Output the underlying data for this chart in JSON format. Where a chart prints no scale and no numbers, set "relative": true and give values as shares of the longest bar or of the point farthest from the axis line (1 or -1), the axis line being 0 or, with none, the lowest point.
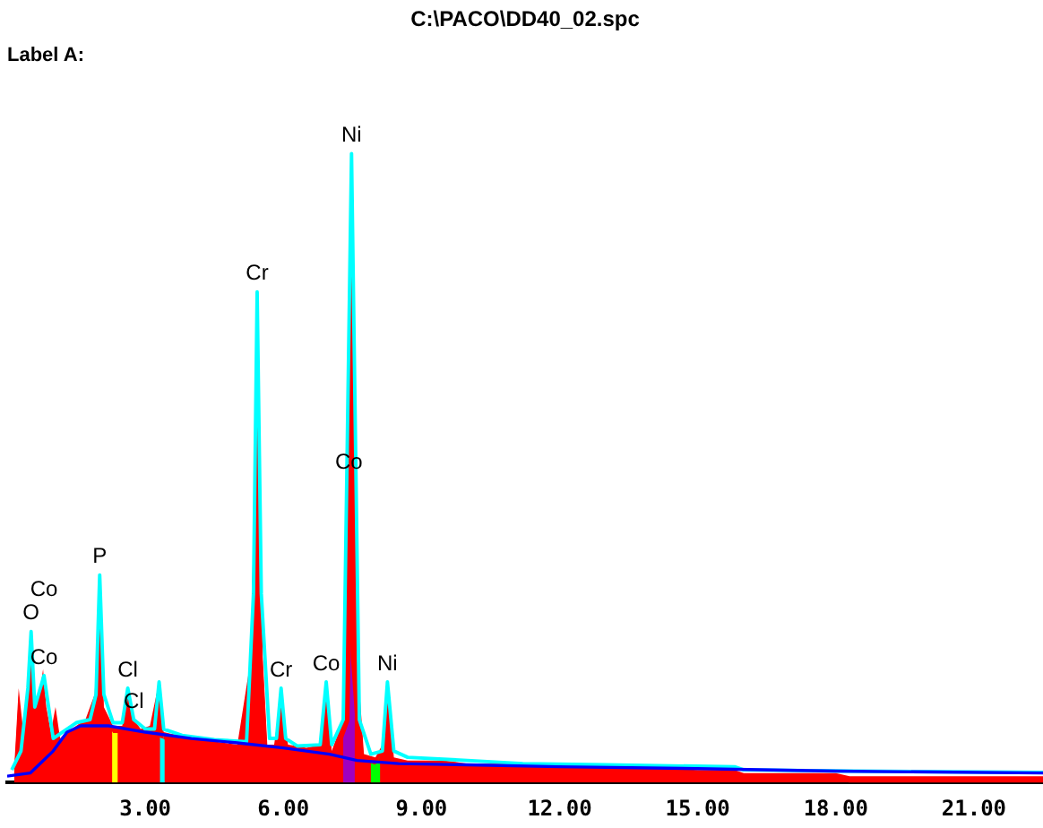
{
  "chart_data": {
    "type": "area",
    "title": "C:\\PACO\\DD40_02.spc",
    "subtitle": "Label A:",
    "relative": true,
    "xlim": [
      0,
      22.5
    ],
    "xticks": [
      {
        "value": 3,
        "label": "3.00"
      },
      {
        "value": 6,
        "label": "6.00"
      },
      {
        "value": 9,
        "label": "9.00"
      },
      {
        "value": 12,
        "label": "12.00"
      },
      {
        "value": 15,
        "label": "15.00"
      },
      {
        "value": 18,
        "label": "18.00"
      },
      {
        "value": 21,
        "label": "21.00"
      }
    ],
    "tick_labels": "x",
    "grid": false,
    "legend": false,
    "marker": "none",
    "series": [
      {
        "color": "#ff0000",
        "x": [
          0.15,
          0.25,
          0.35,
          0.45,
          0.52,
          0.6,
          0.7,
          0.78,
          0.85,
          0.95,
          1.05,
          1.15,
          1.3,
          1.5,
          1.7,
          1.9,
          2.01,
          2.1,
          2.3,
          2.5,
          2.62,
          2.75,
          2.9,
          3.1,
          3.3,
          3.4,
          3.7,
          4.0,
          4.5,
          5.0,
          5.3,
          5.43,
          5.55,
          5.65,
          5.8,
          5.95,
          6.1,
          6.5,
          6.8,
          6.93,
          7.05,
          7.3,
          7.48,
          7.6,
          7.75,
          8.0,
          8.15,
          8.26,
          8.4,
          8.7,
          9.5,
          10,
          11,
          11.2,
          13,
          15,
          15.8,
          16,
          18,
          18.3,
          22.5
        ],
        "values": [
          0.02,
          0.15,
          0.08,
          0.17,
          0.22,
          0.12,
          0.14,
          0.18,
          0.12,
          0.08,
          0.12,
          0.07,
          0.08,
          0.09,
          0.1,
          0.14,
          0.3,
          0.12,
          0.09,
          0.09,
          0.15,
          0.1,
          0.085,
          0.09,
          0.16,
          0.08,
          0.075,
          0.07,
          0.065,
          0.06,
          0.2,
          0.78,
          0.2,
          0.06,
          0.06,
          0.14,
          0.06,
          0.055,
          0.06,
          0.16,
          0.05,
          0.1,
          1,
          0.2,
          0.045,
          0.04,
          0.06,
          0.15,
          0.04,
          0.035,
          0.035,
          0.03,
          0.03,
          0.025,
          0.025,
          0.02,
          0.02,
          0.015,
          0.015,
          0.01,
          0.01
        ]
      },
      {
        "type": "line",
        "color": "#00ffff",
        "x": [
          0.1,
          0.3,
          0.45,
          0.52,
          0.6,
          0.8,
          0.9,
          1.0,
          1.2,
          1.5,
          1.8,
          1.93,
          2.01,
          2.1,
          2.3,
          2.5,
          2.62,
          2.75,
          3.0,
          3.2,
          3.3,
          3.4,
          3.8,
          4.5,
          5.2,
          5.35,
          5.43,
          5.52,
          5.7,
          5.85,
          5.95,
          6.05,
          6.3,
          6.8,
          6.93,
          7.05,
          7.3,
          7.48,
          7.65,
          7.9,
          8.15,
          8.26,
          8.4,
          8.7,
          10,
          11.2,
          13,
          15.8,
          16,
          18.3,
          22.5
        ],
        "values": [
          0.02,
          0.05,
          0.15,
          0.24,
          0.12,
          0.17,
          0.12,
          0.07,
          0.08,
          0.095,
          0.1,
          0.14,
          0.33,
          0.14,
          0.095,
          0.095,
          0.15,
          0.1,
          0.085,
          0.085,
          0.16,
          0.085,
          0.075,
          0.068,
          0.065,
          0.3,
          0.78,
          0.3,
          0.07,
          0.07,
          0.15,
          0.07,
          0.058,
          0.06,
          0.16,
          0.06,
          0.1,
          1,
          0.1,
          0.045,
          0.05,
          0.16,
          0.05,
          0.04,
          0.035,
          0.03,
          0.028,
          0.025,
          0.02,
          0.018,
          0.016
        ]
      },
      {
        "type": "line",
        "color": "#0000ff",
        "x": [
          0,
          0.5,
          1.0,
          1.3,
          1.6,
          2.2,
          3,
          4,
          5,
          6,
          7,
          7.6,
          8.5,
          10,
          12,
          15,
          18,
          22.5
        ],
        "values": [
          0.01,
          0.015,
          0.05,
          0.08,
          0.09,
          0.09,
          0.08,
          0.07,
          0.063,
          0.055,
          0.045,
          0.035,
          0.03,
          0.028,
          0.025,
          0.022,
          0.018,
          0.015
        ]
      }
    ],
    "bands": [
      {
        "axis": "x",
        "from": 2.28,
        "to": 2.4,
        "color": "#ffff00"
      },
      {
        "axis": "x",
        "from": 3.32,
        "to": 3.42,
        "color": "#00ffff"
      },
      {
        "axis": "x",
        "from": 7.3,
        "to": 7.55,
        "color": "#a000c0"
      },
      {
        "axis": "x",
        "from": 7.9,
        "to": 8.1,
        "color": "#00ff00"
      }
    ],
    "annotations": [
      {
        "text": "O",
        "x": 0.52,
        "y": 0.24
      },
      {
        "text": "Co",
        "x": 0.8,
        "y": 0.17
      },
      "Co",
      {
        "text": "P",
        "x": 2.01,
        "y": 0.33
      },
      {
        "text": "Cl",
        "x": 2.62,
        "y": 0.15
      },
      {
        "text": "Cl",
        "x": 2.75,
        "y": 0.1
      },
      {
        "text": "Cr",
        "x": 5.43,
        "y": 0.78
      },
      {
        "text": "Cr",
        "x": 5.95,
        "y": 0.15
      },
      {
        "text": "Co",
        "x": 6.93,
        "y": 0.16
      },
      {
        "text": "Co",
        "x": 7.42,
        "y": 0.48
      },
      {
        "text": "Ni",
        "x": 7.48,
        "y": 1
      },
      {
        "text": "Ni",
        "x": 8.26,
        "y": 0.16
      }
    ]
  }
}
